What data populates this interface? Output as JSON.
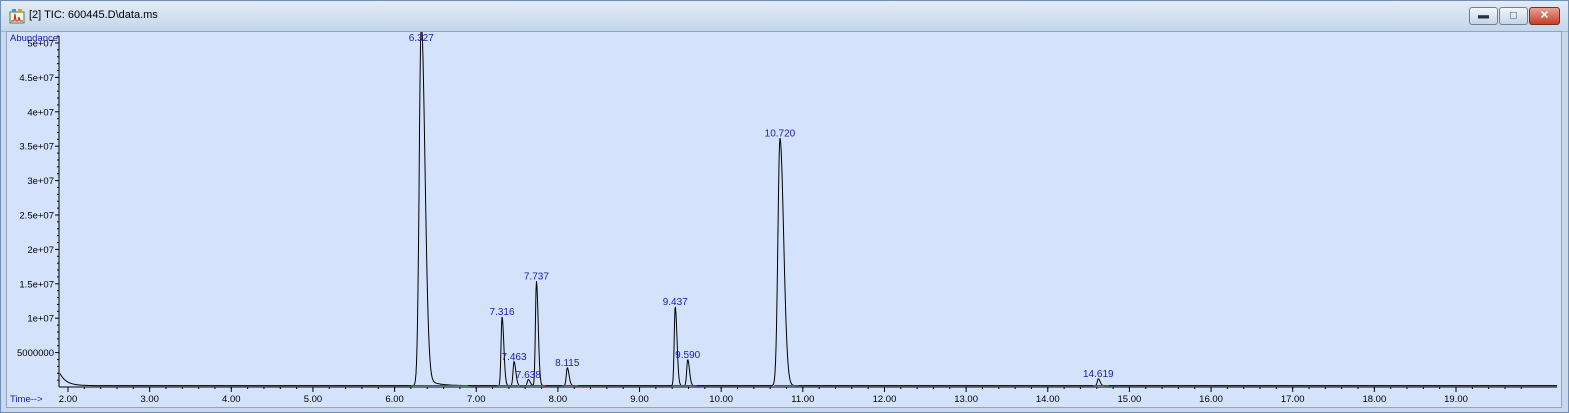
{
  "window": {
    "title": "[2] TIC: 600445.D\\data.ms",
    "minimize_glyph": "▬",
    "maximize_glyph": "□",
    "close_glyph": "✕",
    "icon": "chromatogram-app-icon"
  },
  "chart_data": {
    "type": "line",
    "ylabel": "Abundance",
    "xlabel": "Time-->",
    "xlim": [
      1.9,
      20.0
    ],
    "ylim": [
      0,
      52000000
    ],
    "x_ticks": [
      "2.00",
      "3.00",
      "4.00",
      "5.00",
      "6.00",
      "7.00",
      "8.00",
      "9.00",
      "10.00",
      "11.00",
      "12.00",
      "13.00",
      "14.00",
      "15.00",
      "16.00",
      "17.00",
      "18.00",
      "19.00"
    ],
    "y_ticks": [
      {
        "value": 5000000,
        "label": "5000000"
      },
      {
        "value": 10000000,
        "label": "1e+07"
      },
      {
        "value": 15000000,
        "label": "1.5e+07"
      },
      {
        "value": 20000000,
        "label": "2e+07"
      },
      {
        "value": 25000000,
        "label": "2.5e+07"
      },
      {
        "value": 30000000,
        "label": "3e+07"
      },
      {
        "value": 35000000,
        "label": "3.5e+07"
      },
      {
        "value": 40000000,
        "label": "4e+07"
      },
      {
        "value": 45000000,
        "label": "4.5e+07"
      },
      {
        "value": 50000000,
        "label": "5e+07"
      }
    ],
    "line_color": "#000000",
    "baseline_color": "#d02020",
    "label_color": "#1a1ab5",
    "peaks": [
      {
        "rt": 6.327,
        "label": "6.327",
        "height": 51500000
      },
      {
        "rt": 7.316,
        "label": "7.316",
        "height": 10000000
      },
      {
        "rt": 7.463,
        "label": "7.463",
        "height": 3500000
      },
      {
        "rt": 7.638,
        "label": "7.638",
        "height": 900000
      },
      {
        "rt": 7.737,
        "label": "7.737",
        "height": 15200000
      },
      {
        "rt": 8.115,
        "label": "8.115",
        "height": 2600000
      },
      {
        "rt": 9.437,
        "label": "9.437",
        "height": 11500000
      },
      {
        "rt": 9.59,
        "label": "9.590",
        "height": 3800000
      },
      {
        "rt": 10.72,
        "label": "10.720",
        "height": 36000000
      },
      {
        "rt": 14.619,
        "label": "14.619",
        "height": 1000000
      }
    ]
  }
}
